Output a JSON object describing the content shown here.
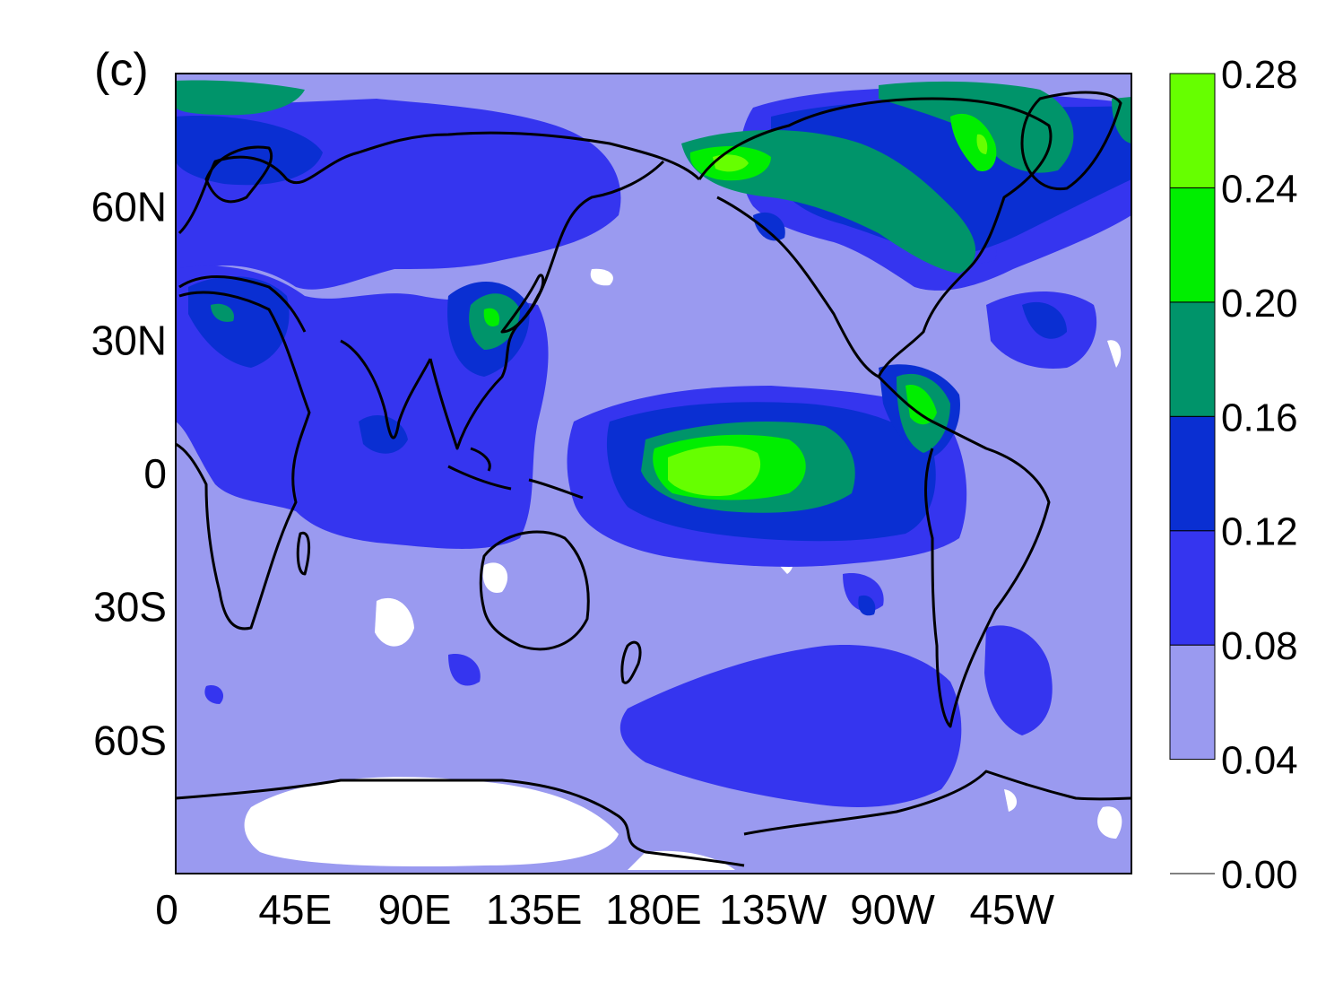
{
  "panel_label": "(c)",
  "colors": {
    "c0": "#ffffff",
    "c1": "#9a9af0",
    "c2": "#3535ef",
    "c3": "#0a2fd2",
    "c4": "#00946a",
    "c5": "#00ee00",
    "c6": "#66ff00",
    "coast": "#000000"
  },
  "map": {
    "x_ticks": [
      "0",
      "45E",
      "90E",
      "135E",
      "180E",
      "135W",
      "90W",
      "45W"
    ],
    "x_tick_lons": [
      0,
      45,
      90,
      135,
      180,
      225,
      270,
      315
    ],
    "y_ticks": [
      "60N",
      "30N",
      "0",
      "30S",
      "60S"
    ],
    "y_tick_lats": [
      60,
      30,
      0,
      -30,
      -60
    ],
    "lon_range": [
      0,
      360
    ],
    "lat_range": [
      -90,
      90
    ]
  },
  "colorbar": {
    "labels": [
      "0.28",
      "0.24",
      "0.20",
      "0.16",
      "0.12",
      "0.08",
      "0.04",
      "0.00"
    ],
    "levels": [
      0.0,
      0.04,
      0.08,
      0.12,
      0.16,
      0.2,
      0.24,
      0.28
    ],
    "colors_low_to_high": [
      "#ffffff",
      "#9a9af0",
      "#3535ef",
      "#0a2fd2",
      "#00946a",
      "#00ee00",
      "#66ff00"
    ]
  }
}
